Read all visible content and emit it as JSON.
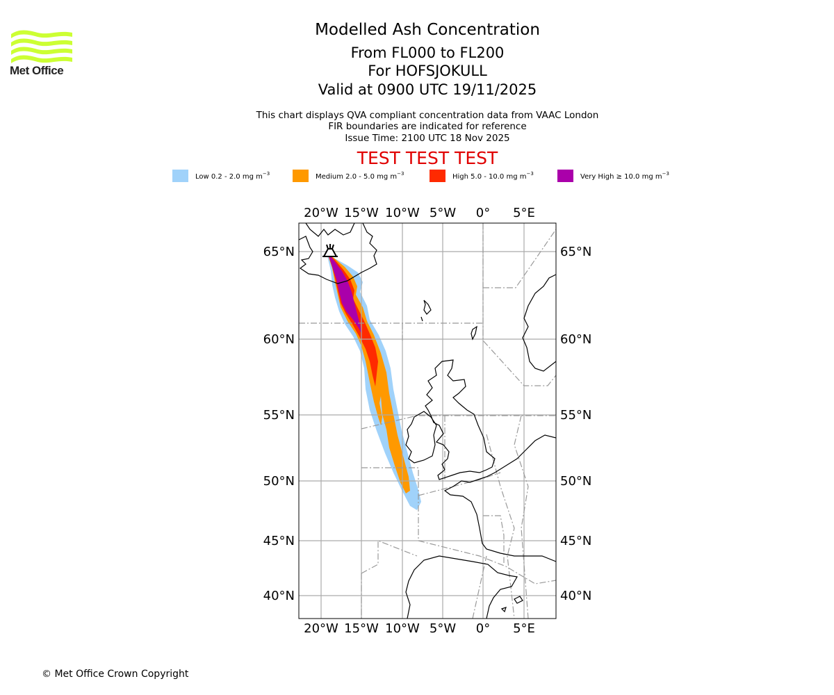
{
  "branding": {
    "logo_text": "Met Office",
    "logo_color": "#ccff33"
  },
  "header": {
    "title": "Modelled Ash Concentration",
    "levels": "From FL000 to FL200",
    "volcano": "For HOFSJOKULL",
    "valid": "Valid at 0900 UTC 19/11/2025",
    "subtitle_1": "This chart displays QVA compliant concentration data from VAAC London",
    "subtitle_2": "FIR boundaries are indicated for reference",
    "issue_time": "Issue Time: 2100 UTC 18 Nov 2025",
    "test_banner": "TEST TEST TEST",
    "test_color": "#e00000"
  },
  "legend": [
    {
      "label": "Low 0.2 - 2.0 mg m",
      "exp": "−3",
      "color": "#a0d2fa"
    },
    {
      "label": "Medium 2.0 - 5.0 mg m",
      "exp": "−3",
      "color": "#ff9900"
    },
    {
      "label": "High 5.0 - 10.0 mg m",
      "exp": "−3",
      "color": "#ff2a00"
    },
    {
      "label": "Very High ≥ 10.0 mg m",
      "exp": "−3",
      "color": "#aa00aa"
    }
  ],
  "map": {
    "lon_ticks": [
      "20°W",
      "15°W",
      "10°W",
      "5°W",
      "0°",
      "5°E"
    ],
    "lat_ticks": [
      "65°N",
      "60°N",
      "55°N",
      "50°N",
      "45°N",
      "40°N"
    ],
    "volcano_marker": "volcano-icon",
    "volcano_name": "HOFSJOKULL"
  },
  "footer": {
    "copyright": "© Met Office Crown Copyright"
  }
}
